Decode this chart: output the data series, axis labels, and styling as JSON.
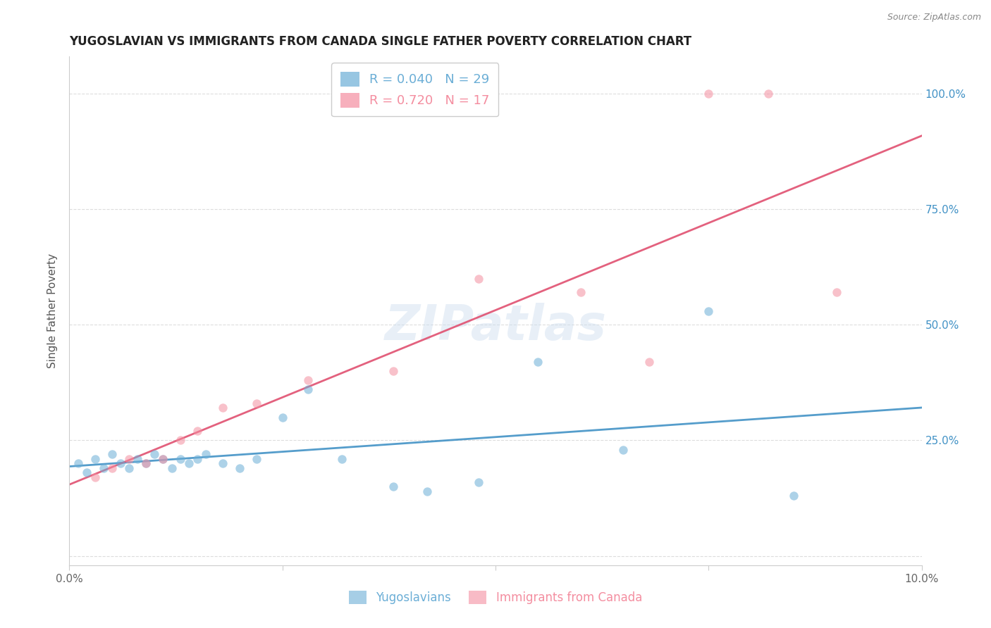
{
  "title": "YUGOSLAVIAN VS IMMIGRANTS FROM CANADA SINGLE FATHER POVERTY CORRELATION CHART",
  "source": "Source: ZipAtlas.com",
  "ylabel": "Single Father Poverty",
  "xlim": [
    0.0,
    0.1
  ],
  "ylim": [
    -0.02,
    1.08
  ],
  "legend_entries": [
    {
      "label": "R = 0.040   N = 29",
      "color": "#6baed6"
    },
    {
      "label": "R = 0.720   N = 17",
      "color": "#f48ea0"
    }
  ],
  "background_color": "#ffffff",
  "grid_color": "#dddddd",
  "watermark": "ZIPatlas",
  "yug_scatter_x": [
    0.001,
    0.002,
    0.003,
    0.004,
    0.005,
    0.006,
    0.007,
    0.008,
    0.009,
    0.01,
    0.011,
    0.012,
    0.013,
    0.014,
    0.015,
    0.016,
    0.018,
    0.02,
    0.022,
    0.025,
    0.028,
    0.032,
    0.038,
    0.042,
    0.048,
    0.055,
    0.065,
    0.075,
    0.085
  ],
  "yug_scatter_y": [
    0.2,
    0.18,
    0.21,
    0.19,
    0.22,
    0.2,
    0.19,
    0.21,
    0.2,
    0.22,
    0.21,
    0.19,
    0.21,
    0.2,
    0.21,
    0.22,
    0.2,
    0.19,
    0.21,
    0.3,
    0.36,
    0.21,
    0.15,
    0.14,
    0.16,
    0.42,
    0.23,
    0.53,
    0.13
  ],
  "can_scatter_x": [
    0.003,
    0.005,
    0.007,
    0.009,
    0.011,
    0.013,
    0.015,
    0.018,
    0.022,
    0.028,
    0.038,
    0.048,
    0.06,
    0.068,
    0.075,
    0.082,
    0.09
  ],
  "can_scatter_y": [
    0.17,
    0.19,
    0.21,
    0.2,
    0.21,
    0.25,
    0.27,
    0.32,
    0.33,
    0.38,
    0.4,
    0.6,
    0.57,
    0.42,
    1.0,
    1.0,
    0.57
  ],
  "yug_color": "#6baed6",
  "can_color": "#f48ea0",
  "yug_line_color": "#4292c6",
  "can_line_color": "#e05070",
  "scatter_size": 80,
  "scatter_alpha": 0.55,
  "line_width": 2.0,
  "line_alpha": 0.9,
  "bottom_legend": [
    {
      "label": "Yugoslavians",
      "color": "#6baed6"
    },
    {
      "label": "Immigrants from Canada",
      "color": "#f48ea0"
    }
  ]
}
